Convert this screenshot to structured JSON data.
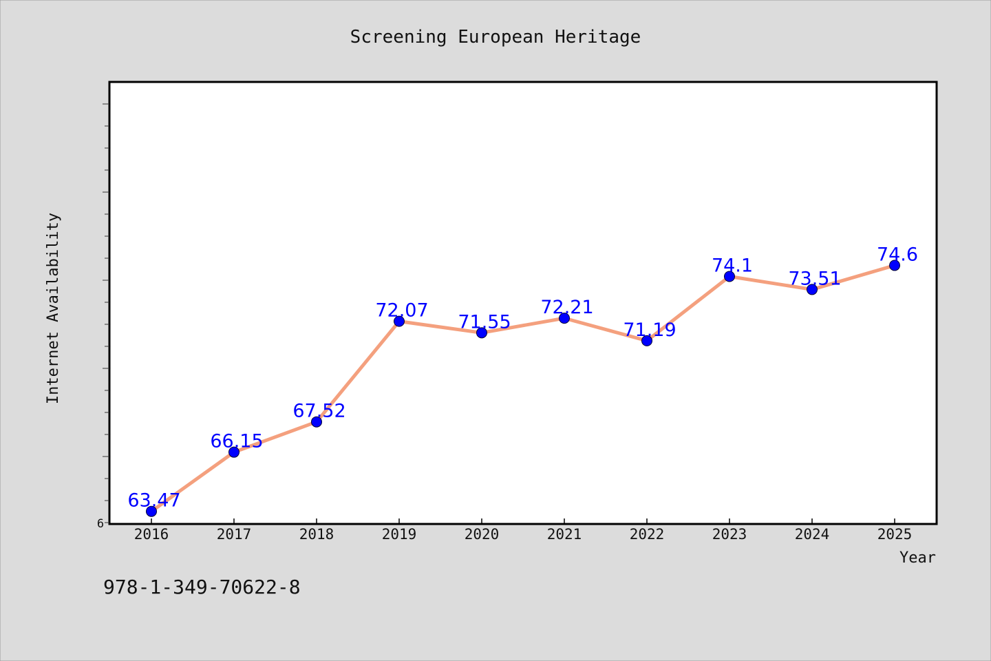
{
  "chart_data": {
    "type": "line",
    "title": "Screening European Heritage",
    "xlabel": "Year",
    "ylabel": "Internet Availability",
    "categories": [
      "2016",
      "2017",
      "2018",
      "2019",
      "2020",
      "2021",
      "2022",
      "2023",
      "2024",
      "2025"
    ],
    "series": [
      {
        "values": [
          63.47,
          66.15,
          67.52,
          72.07,
          71.55,
          72.21,
          71.19,
          74.1,
          73.51,
          74.6
        ],
        "labels": [
          "63.47",
          "66.15",
          "67.52",
          "72.07",
          "71.55",
          "72.21",
          "71.19",
          "74.1",
          "73.51",
          "74.6"
        ],
        "line_color": "#f4a07e",
        "marker_color": "#0000ff"
      }
    ],
    "y_tick_labels": [
      "6"
    ],
    "ylim": [
      62.9,
      82.9
    ],
    "grid": false,
    "footer_text": "978-1-349-70622-8",
    "colors": {
      "background": "#dcdcdc",
      "plot_background": "#ffffff",
      "label_color": "#0000ff"
    }
  }
}
